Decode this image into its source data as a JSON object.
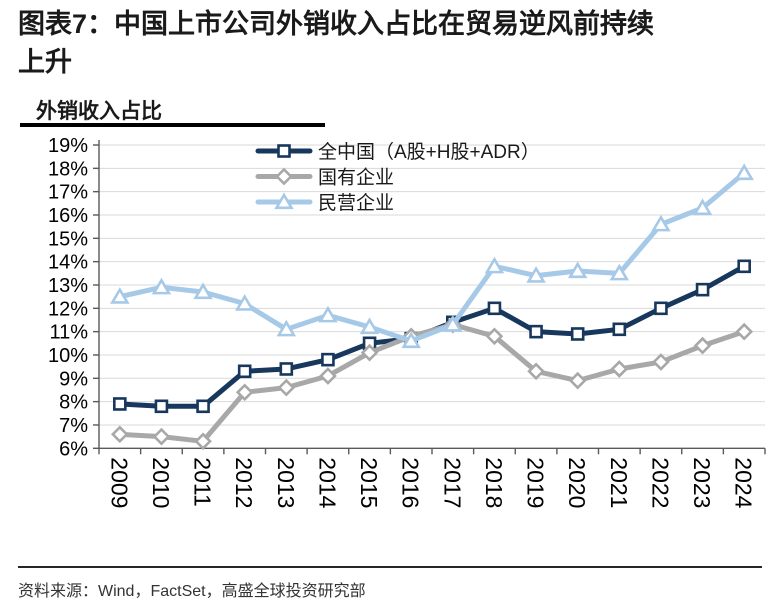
{
  "page": {
    "title_lines": [
      "图表7：中国上市公司外销收入占比在贸易逆风前持续",
      "上升"
    ],
    "chart_header": "外销收入占比",
    "source": "资料来源：Wind，FactSet，高盛全球投资研究部"
  },
  "chart_data": {
    "type": "line",
    "title": "外销收入占比",
    "categories": [
      "2009",
      "2010",
      "2011",
      "2012",
      "2013",
      "2014",
      "2015",
      "2016",
      "2017",
      "2018",
      "2019",
      "2020",
      "2021",
      "2022",
      "2023",
      "2024"
    ],
    "yticks": [
      "19%",
      "18%",
      "17%",
      "16%",
      "15%",
      "14%",
      "13%",
      "12%",
      "11%",
      "10%",
      "9%",
      "8%",
      "7%",
      "6%"
    ],
    "ylim": [
      6,
      19
    ],
    "grid": "horizontal",
    "legend_position": "top-inside",
    "axis_color": "#595959",
    "gridline_color": "#D9D9D9",
    "series": [
      {
        "key": "all-china",
        "name": "全中国（A股+H股+ADR）",
        "color": "#17375C",
        "marker": "square",
        "values": [
          7.9,
          7.8,
          7.8,
          9.3,
          9.4,
          9.8,
          10.5,
          10.7,
          11.4,
          12.0,
          11.0,
          10.9,
          11.1,
          12.0,
          12.8,
          13.8
        ]
      },
      {
        "key": "state-owned-enterprises",
        "name": "国有企业",
        "color": "#A8A8A8",
        "marker": "diamond",
        "values": [
          6.6,
          6.5,
          6.3,
          8.4,
          8.6,
          9.1,
          10.1,
          10.8,
          11.3,
          10.8,
          9.3,
          8.9,
          9.4,
          9.7,
          10.4,
          11.0
        ]
      },
      {
        "key": "private-enterprises",
        "name": "民营企业",
        "color": "#A6C9E8",
        "marker": "triangle",
        "values": [
          12.5,
          12.9,
          12.7,
          12.2,
          11.1,
          11.7,
          11.2,
          10.6,
          11.3,
          13.8,
          13.4,
          13.6,
          13.5,
          15.6,
          16.3,
          17.8
        ]
      }
    ]
  }
}
